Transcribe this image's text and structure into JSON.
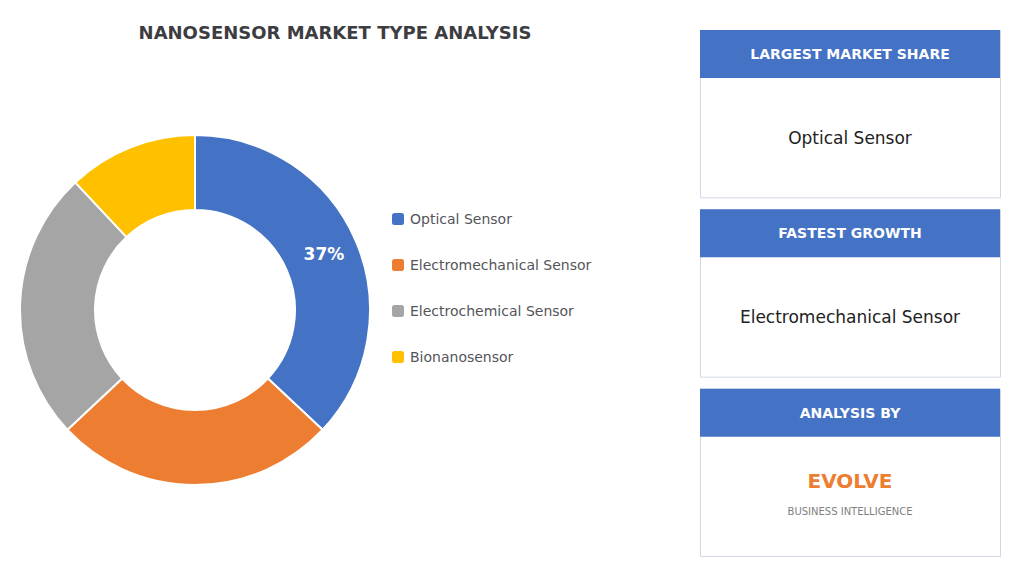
{
  "chart_data": {
    "type": "pie",
    "title": "NANOSENSOR MARKET TYPE ANALYSIS",
    "categories": [
      "Optical Sensor",
      "Electromechanical Sensor",
      "Electrochemical Sensor",
      "Bionanosensor"
    ],
    "values": [
      37,
      26,
      25,
      12
    ],
    "value_labels": [
      "37%",
      null,
      null,
      null
    ],
    "colors": [
      "#4472c4",
      "#ed7d31",
      "#a5a5a5",
      "#ffc000"
    ],
    "legend": "right",
    "annotations": [
      [
        "LARGEST MARKET SHARE",
        "Optical Sensor"
      ],
      [
        "FASTEST GROWTH",
        "Electromechanical Sensor"
      ],
      [
        "ANALYSIS BY",
        "EVOLVE",
        "BUSINESS INTELLIGENCE"
      ]
    ]
  }
}
